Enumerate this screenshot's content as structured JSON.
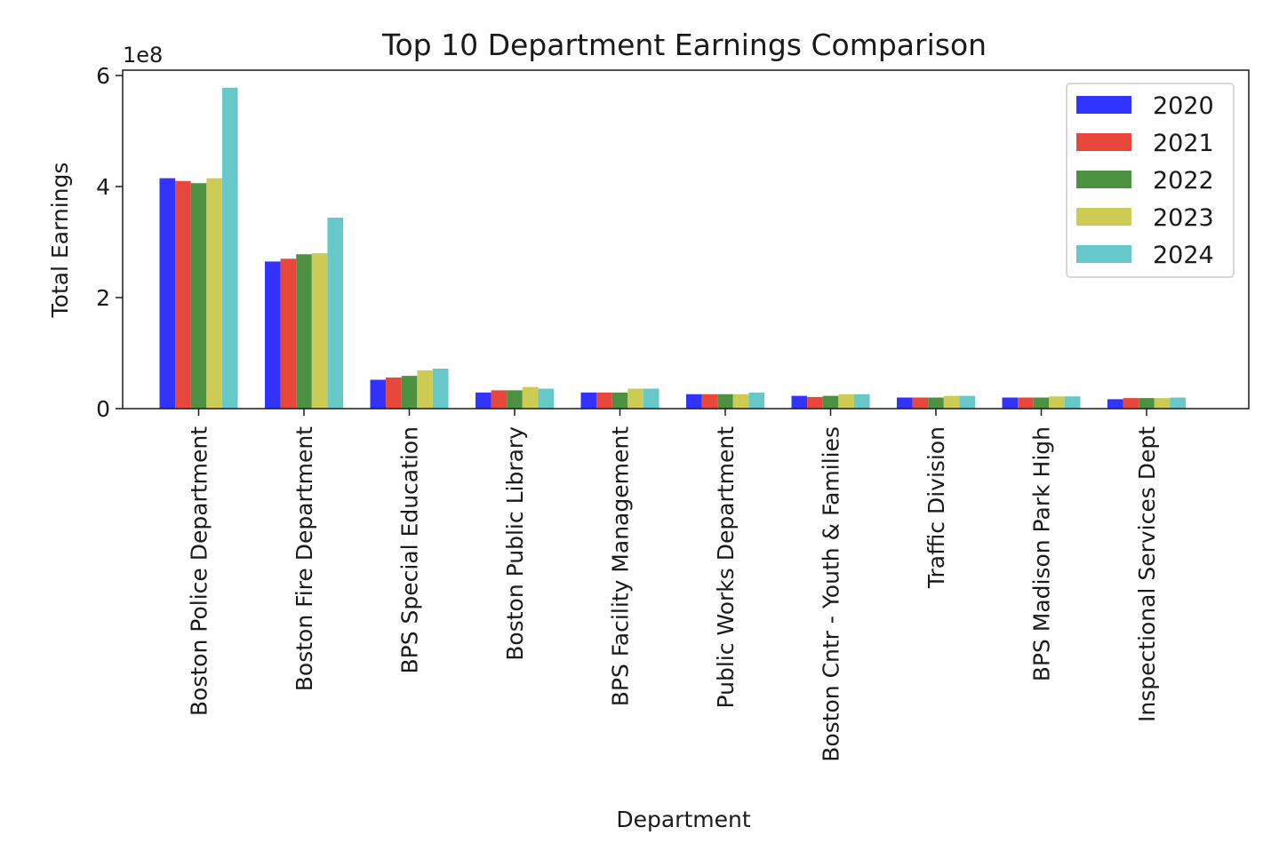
{
  "chart_data": {
    "type": "bar",
    "title": "Top 10 Department Earnings Comparison",
    "xlabel": "Department",
    "ylabel": "Total Earnings",
    "y_offset_label": "1e8",
    "yticks": [
      0,
      2,
      4,
      6
    ],
    "ytick_labels": [
      "0",
      "2",
      "4",
      "6"
    ],
    "ylim": [
      0,
      6
    ],
    "grid": false,
    "legend_position": "top-right",
    "categories": [
      "Boston Police Department",
      "Boston Fire Department",
      "BPS Special Education",
      "Boston Public Library",
      "BPS Facility Management",
      "Public Works Department",
      "Boston Cntr - Youth & Families",
      "Traffic Division",
      "BPS Madison Park High",
      "Inspectional Services Dept"
    ],
    "series": [
      {
        "name": "2020",
        "color": "#3333ff",
        "values": [
          4.15,
          2.65,
          0.52,
          0.29,
          0.29,
          0.26,
          0.23,
          0.2,
          0.2,
          0.17
        ]
      },
      {
        "name": "2021",
        "color": "#e8483b",
        "values": [
          4.1,
          2.7,
          0.56,
          0.33,
          0.29,
          0.26,
          0.21,
          0.2,
          0.2,
          0.19
        ]
      },
      {
        "name": "2022",
        "color": "#4c9141",
        "values": [
          4.06,
          2.78,
          0.59,
          0.33,
          0.29,
          0.26,
          0.23,
          0.2,
          0.2,
          0.19
        ]
      },
      {
        "name": "2023",
        "color": "#cccc55",
        "values": [
          4.15,
          2.8,
          0.69,
          0.39,
          0.36,
          0.26,
          0.26,
          0.23,
          0.22,
          0.19
        ]
      },
      {
        "name": "2024",
        "color": "#66c8c8",
        "values": [
          5.78,
          3.44,
          0.72,
          0.36,
          0.36,
          0.29,
          0.26,
          0.23,
          0.22,
          0.2
        ]
      }
    ]
  }
}
